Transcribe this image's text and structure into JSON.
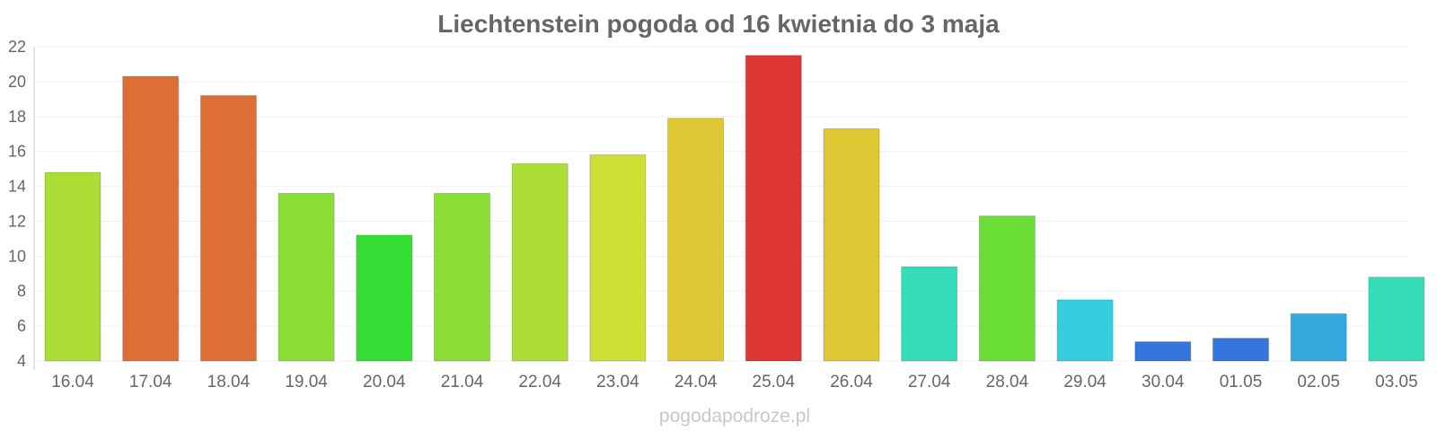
{
  "chart_data": {
    "type": "bar",
    "title": "Liechtenstein pogoda od 16 kwietnia do 3 maja",
    "categories": [
      "16.04",
      "17.04",
      "18.04",
      "19.04",
      "20.04",
      "21.04",
      "22.04",
      "23.04",
      "24.04",
      "25.04",
      "26.04",
      "27.04",
      "28.04",
      "29.04",
      "30.04",
      "01.05",
      "02.05",
      "03.05"
    ],
    "values": [
      14.8,
      20.3,
      19.2,
      13.6,
      11.2,
      13.6,
      15.3,
      15.8,
      17.9,
      21.5,
      17.3,
      9.4,
      12.3,
      7.5,
      5.1,
      5.3,
      6.7,
      8.8
    ],
    "colors": [
      "#acde35",
      "#de6e35",
      "#de6e35",
      "#8ade35",
      "#35de35",
      "#8ade35",
      "#acde35",
      "#cede35",
      "#dec935",
      "#de3535",
      "#dec935",
      "#35deb9",
      "#6ade35",
      "#35cede",
      "#3575de",
      "#3575de",
      "#35a8de",
      "#35deb9"
    ],
    "ylim": [
      4,
      22
    ],
    "yticks": [
      4,
      6,
      8,
      10,
      12,
      14,
      16,
      18,
      20,
      22
    ],
    "grid": true,
    "source": "pogodapodroze.pl"
  }
}
